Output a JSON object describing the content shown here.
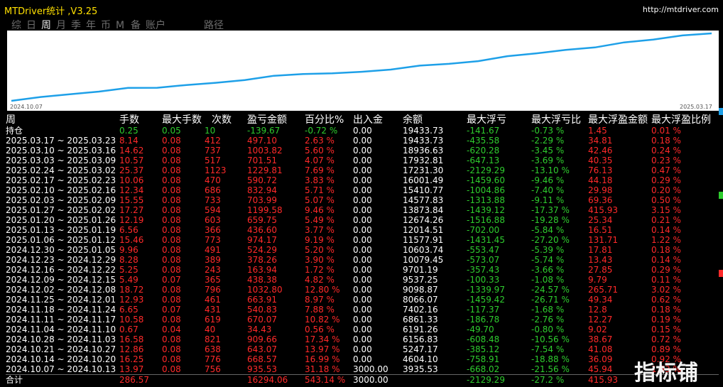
{
  "window": {
    "title": "MTDriver统计 ,V3.25",
    "url": "http://mtdriver.com"
  },
  "tabs": [
    {
      "label": "综",
      "active": false
    },
    {
      "label": "日",
      "active": false
    },
    {
      "label": "周",
      "active": true
    },
    {
      "label": "月",
      "active": false
    },
    {
      "label": "季",
      "active": false
    },
    {
      "label": "年",
      "active": false
    },
    {
      "label": "币",
      "active": false
    },
    {
      "label": "M",
      "active": false
    },
    {
      "label": "备",
      "active": false
    },
    {
      "label": "账户",
      "active": false
    }
  ],
  "path_tab": "路径",
  "chart_data": {
    "type": "line",
    "x_start_label": "2024.10.07",
    "x_end_label": "2025.03.17",
    "x": [
      "2024.10.07",
      "2024.10.14",
      "2024.10.21",
      "2024.10.28",
      "2024.11.04",
      "2024.11.11",
      "2024.11.18",
      "2024.11.25",
      "2024.12.02",
      "2024.12.09",
      "2024.12.16",
      "2024.12.23",
      "2024.12.30",
      "2025.01.06",
      "2025.01.13",
      "2025.01.20",
      "2025.01.27",
      "2025.02.03",
      "2025.02.10",
      "2025.02.17",
      "2025.02.24",
      "2025.03.03",
      "2025.03.10",
      "2025.03.17",
      "2025.03.17"
    ],
    "values": [
      3000,
      3935.53,
      4604.1,
      5247.17,
      6156.83,
      6191.26,
      6861.33,
      7402.16,
      8066.07,
      9098.87,
      9537.25,
      9701.19,
      10079.45,
      10603.74,
      11577.91,
      12014.51,
      12674.26,
      13873.84,
      14577.83,
      15410.77,
      16001.49,
      17231.3,
      17932.81,
      18936.63,
      19433.73
    ],
    "line_color": "#1ea0e8"
  },
  "table": {
    "headers": [
      "周",
      "手数",
      "最大手数",
      "次数",
      "盈亏金额",
      "百分比%",
      "出入金",
      "余额",
      "最大浮亏",
      "最大浮亏比",
      "最大浮盈金额",
      "最大浮盈比例"
    ],
    "holding": [
      "持仓",
      "0.25",
      "0.05",
      "10",
      "-139.67",
      "-0.72 %",
      "0.00",
      "19433.73",
      "-141.67",
      "-0.73 %",
      "1.45",
      "0.01 %"
    ],
    "rows": [
      [
        "2025.03.17 ~ 2025.03.23",
        "8.14",
        "0.08",
        "412",
        "497.10",
        "2.63 %",
        "0.00",
        "19433.73",
        "-435.58",
        "-2.29 %",
        "34.81",
        "0.18 %"
      ],
      [
        "2025.03.10 ~ 2025.03.16",
        "14.62",
        "0.08",
        "737",
        "1003.82",
        "5.60 %",
        "0.00",
        "18936.63",
        "-620.28",
        "-3.45 %",
        "42.46",
        "0.24 %"
      ],
      [
        "2025.03.03 ~ 2025.03.09",
        "10.57",
        "0.08",
        "517",
        "701.51",
        "4.07 %",
        "0.00",
        "17932.81",
        "-647.13",
        "-3.69 %",
        "40.35",
        "0.23 %"
      ],
      [
        "2025.02.24 ~ 2025.03.02",
        "25.37",
        "0.08",
        "1123",
        "1229.81",
        "7.69 %",
        "0.00",
        "17231.30",
        "-2129.29",
        "-13.10 %",
        "76.13",
        "0.47 %"
      ],
      [
        "2025.02.17 ~ 2025.02.23",
        "10.06",
        "0.08",
        "470",
        "590.72",
        "3.83 %",
        "0.00",
        "16001.49",
        "-1459.60",
        "-9.46 %",
        "44.18",
        "0.29 %"
      ],
      [
        "2025.02.10 ~ 2025.02.16",
        "12.34",
        "0.08",
        "686",
        "832.94",
        "5.71 %",
        "0.00",
        "15410.77",
        "-1004.86",
        "-7.40 %",
        "29.98",
        "0.20 %"
      ],
      [
        "2025.02.03 ~ 2025.02.09",
        "15.55",
        "0.08",
        "733",
        "703.99",
        "5.07 %",
        "0.00",
        "14577.83",
        "-1313.88",
        "-9.11 %",
        "69.36",
        "0.50 %"
      ],
      [
        "2025.01.27 ~ 2025.02.02",
        "17.27",
        "0.08",
        "594",
        "1199.58",
        "9.46 %",
        "0.00",
        "13873.84",
        "-1439.12",
        "-17.37 %",
        "415.93",
        "3.15 %"
      ],
      [
        "2025.01.20 ~ 2025.01.26",
        "12.19",
        "0.08",
        "603",
        "659.75",
        "5.49 %",
        "0.00",
        "12674.26",
        "-1516.88",
        "-19.28 %",
        "25.34",
        "0.21 %"
      ],
      [
        "2025.01.13 ~ 2025.01.19",
        "6.56",
        "0.08",
        "366",
        "436.60",
        "3.77 %",
        "0.00",
        "12014.51",
        "-702.00",
        "-5.84 %",
        "16.51",
        "0.14 %"
      ],
      [
        "2025.01.06 ~ 2025.01.12",
        "15.46",
        "0.08",
        "773",
        "974.17",
        "9.19 %",
        "0.00",
        "11577.91",
        "-1431.45",
        "-27.20 %",
        "131.71",
        "1.22 %"
      ],
      [
        "2024.12.30 ~ 2025.01.05",
        "9.96",
        "0.08",
        "491",
        "524.29",
        "5.20 %",
        "0.00",
        "10603.74",
        "-553.47",
        "-5.39 %",
        "17.81",
        "0.18 %"
      ],
      [
        "2024.12.23 ~ 2024.12.29",
        "8.28",
        "0.08",
        "389",
        "378.26",
        "3.90 %",
        "0.00",
        "10079.45",
        "-573.07",
        "-5.74 %",
        "13.43",
        "0.14 %"
      ],
      [
        "2024.12.16 ~ 2024.12.22",
        "5.25",
        "0.08",
        "243",
        "163.94",
        "1.72 %",
        "0.00",
        "9701.19",
        "-357.43",
        "-3.66 %",
        "27.85",
        "0.29 %"
      ],
      [
        "2024.12.09 ~ 2024.12.15",
        "5.49",
        "0.07",
        "365",
        "438.38",
        "4.82 %",
        "0.00",
        "9537.25",
        "-100.33",
        "-1.08 %",
        "9.79",
        "0.11 %"
      ],
      [
        "2024.12.02 ~ 2024.12.08",
        "18.72",
        "0.08",
        "796",
        "1032.80",
        "12.80 %",
        "0.00",
        "9098.87",
        "-1339.97",
        "-24.57 %",
        "265.71",
        "3.02 %"
      ],
      [
        "2024.11.25 ~ 2024.12.01",
        "12.93",
        "0.08",
        "461",
        "663.91",
        "8.97 %",
        "0.00",
        "8066.07",
        "-1459.42",
        "-26.71 %",
        "49.34",
        "0.62 %"
      ],
      [
        "2024.11.18 ~ 2024.11.24",
        "6.65",
        "0.07",
        "431",
        "540.83",
        "7.88 %",
        "0.00",
        "7402.16",
        "-117.37",
        "-1.68 %",
        "12.8",
        "0.18 %"
      ],
      [
        "2024.11.11 ~ 2024.11.17",
        "10.58",
        "0.08",
        "619",
        "670.07",
        "10.82 %",
        "0.00",
        "6861.33",
        "-186.78",
        "-2.76 %",
        "12.27",
        "0.19 %"
      ],
      [
        "2024.11.04 ~ 2024.11.10",
        "0.67",
        "0.04",
        "40",
        "34.43",
        "0.56 %",
        "0.00",
        "6191.26",
        "-49.70",
        "-0.80 %",
        "9.02",
        "0.15 %"
      ],
      [
        "2024.10.28 ~ 2024.11.03",
        "16.58",
        "0.08",
        "821",
        "909.66",
        "17.34 %",
        "0.00",
        "6156.83",
        "-608.48",
        "-10.56 %",
        "38.67",
        "0.72 %"
      ],
      [
        "2024.10.21 ~ 2024.10.27",
        "12.86",
        "0.08",
        "638",
        "643.07",
        "13.97 %",
        "0.00",
        "5247.17",
        "-385.12",
        "-7.54 %",
        "41.08",
        "0.89 %"
      ],
      [
        "2024.10.14 ~ 2024.10.20",
        "16.25",
        "0.08",
        "776",
        "668.57",
        "16.99 %",
        "0.00",
        "4604.10",
        "-758.91",
        "-18.88 %",
        "36.09",
        "0.92 %"
      ],
      [
        "2024.10.07 ~ 2024.10.13",
        "13.97",
        "0.08",
        "756",
        "935.53",
        "31.18 %",
        "3000.00",
        "3935.53",
        "-668.02",
        "-21.56 %",
        "45.94",
        "1.53 %"
      ]
    ],
    "total": [
      "合计",
      "286.57",
      "",
      "",
      "16294.06",
      "543.14 %",
      "3000.00",
      "",
      "-2129.29",
      "-27.2 %",
      "415.93",
      ""
    ]
  },
  "watermark": "指标铺",
  "colors": {
    "positive": "#ff2a2a",
    "negative": "#2ecc2e",
    "title": "#ffe000"
  }
}
